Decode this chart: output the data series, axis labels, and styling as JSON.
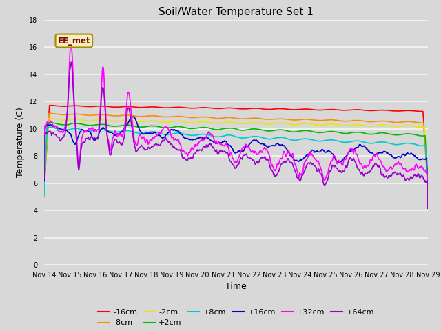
{
  "title": "Soil/Water Temperature Set 1",
  "xlabel": "Time",
  "ylabel": "Temperature (C)",
  "ylim": [
    0,
    18
  ],
  "yticks": [
    0,
    2,
    4,
    6,
    8,
    10,
    12,
    14,
    16,
    18
  ],
  "date_labels": [
    "Nov 14",
    "Nov 15",
    "Nov 16",
    "Nov 17",
    "Nov 18",
    "Nov 19",
    "Nov 20",
    "Nov 21",
    "Nov 22",
    "Nov 23",
    "Nov 24",
    "Nov 25",
    "Nov 26",
    "Nov 27",
    "Nov 28",
    "Nov 29"
  ],
  "annotation": "EE_met",
  "series": [
    {
      "label": "-16cm",
      "color": "#ff0000"
    },
    {
      "label": "-8cm",
      "color": "#ff8c00"
    },
    {
      "label": "-2cm",
      "color": "#e8e800"
    },
    {
      "label": "+2cm",
      "color": "#00bb00"
    },
    {
      "label": "+8cm",
      "color": "#00cccc"
    },
    {
      "label": "+16cm",
      "color": "#0000cc"
    },
    {
      "label": "+32cm",
      "color": "#ff00ff"
    },
    {
      "label": "+64cm",
      "color": "#9900cc"
    }
  ],
  "bg_color": "#d8d8d8",
  "grid_color": "#f0f0f0"
}
